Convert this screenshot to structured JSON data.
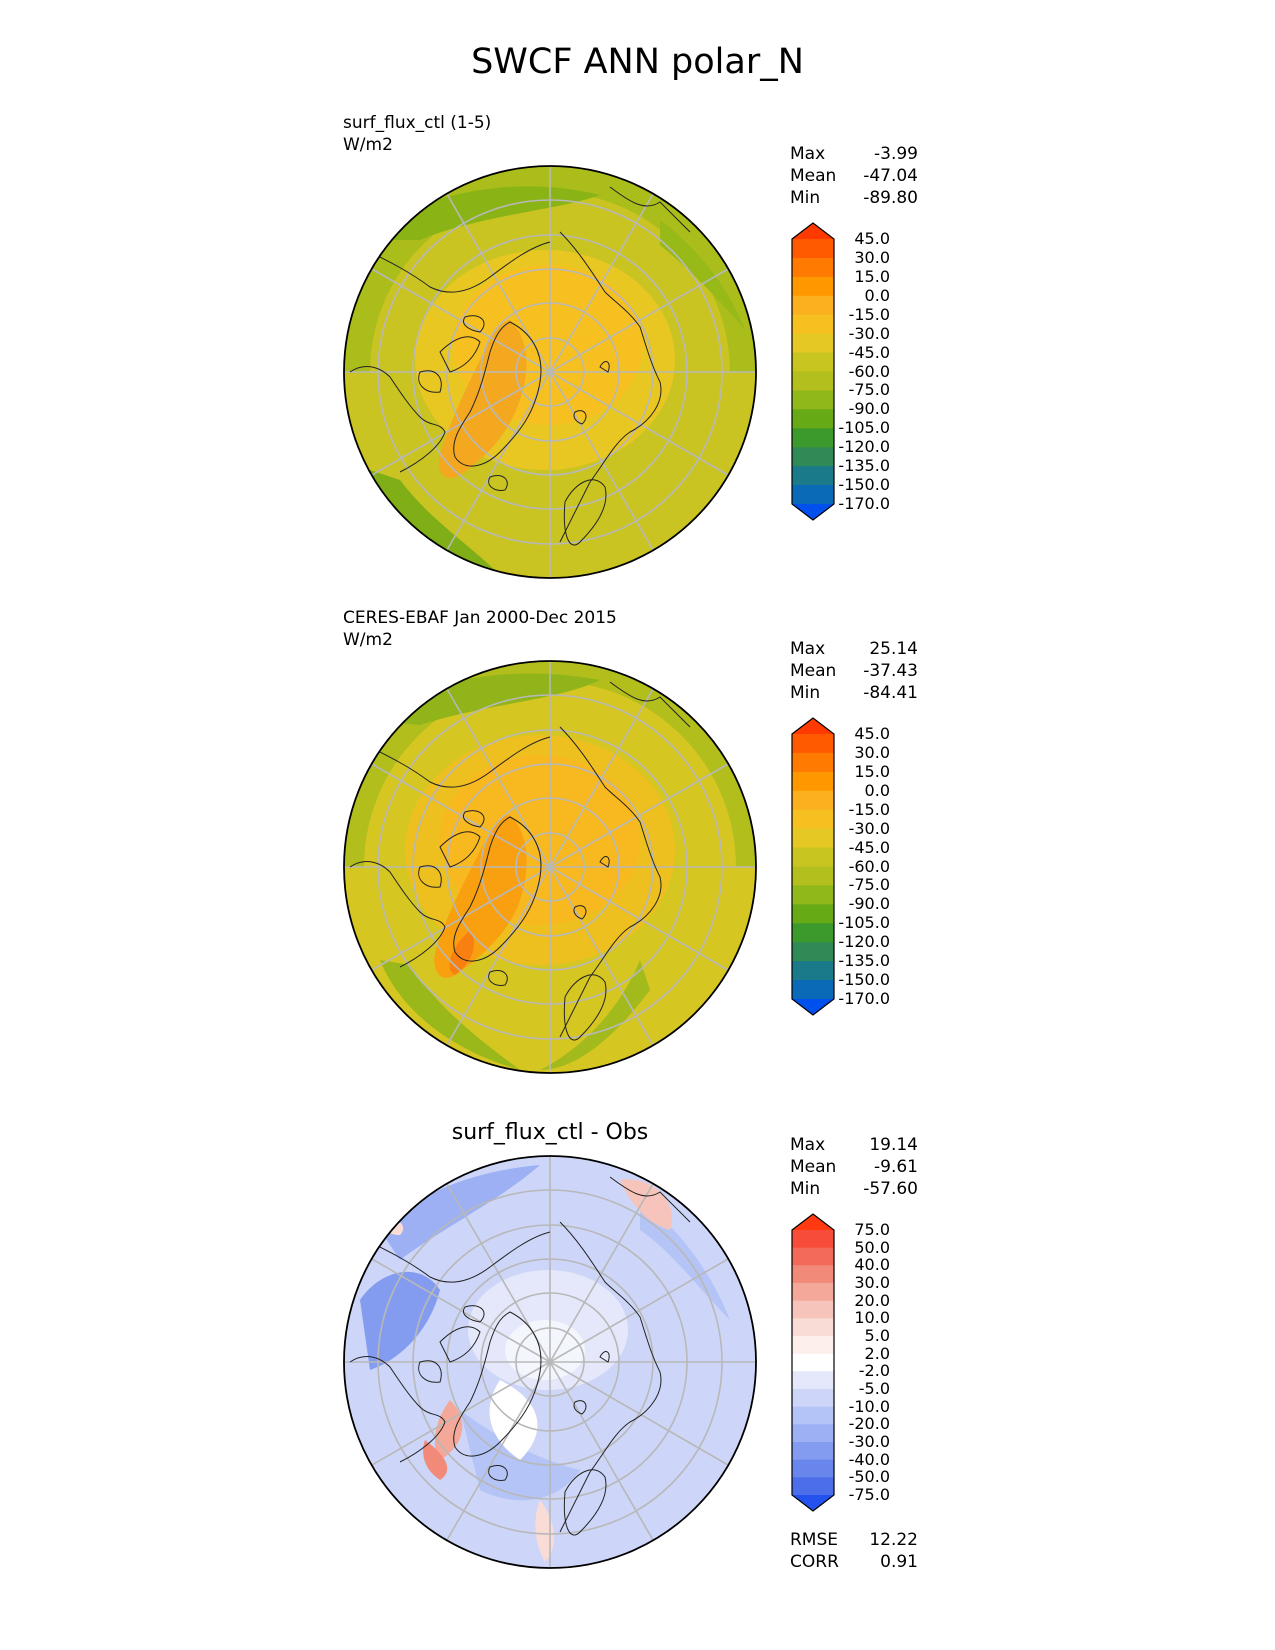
{
  "title": "SWCF ANN polar_N",
  "panels": [
    {
      "id": "model",
      "title_line1": "surf_flux_ctl (1-5)",
      "title_line2": "W/m2",
      "stats": [
        {
          "label": "Max",
          "value": "-3.99"
        },
        {
          "label": "Mean",
          "value": "-47.04"
        },
        {
          "label": "Min",
          "value": "-89.80"
        }
      ],
      "colorbar_levels": [
        "45.0",
        "30.0",
        "15.0",
        "0.0",
        "-15.0",
        "-30.0",
        "-45.0",
        "-60.0",
        "-75.0",
        "-90.0",
        "-105.0",
        "-120.0",
        "-135.0",
        "-150.0",
        "-170.0"
      ],
      "colorbar_colors": [
        "#ff3a00",
        "#ff5a00",
        "#ff7a00",
        "#ff9800",
        "#fbb020",
        "#f6c020",
        "#e6c824",
        "#c8c420",
        "#b2bf1c",
        "#90b81a",
        "#66aa16",
        "#3c9a2c",
        "#2f8a56",
        "#1a7a8a",
        "#0a6ab8",
        "#0050ee"
      ]
    },
    {
      "id": "obs",
      "title_line1": "CERES-EBAF Jan 2000-Dec 2015",
      "title_line2": "W/m2",
      "stats": [
        {
          "label": "Max",
          "value": "25.14"
        },
        {
          "label": "Mean",
          "value": "-37.43"
        },
        {
          "label": "Min",
          "value": "-84.41"
        }
      ],
      "colorbar_levels": [
        "45.0",
        "30.0",
        "15.0",
        "0.0",
        "-15.0",
        "-30.0",
        "-45.0",
        "-60.0",
        "-75.0",
        "-90.0",
        "-105.0",
        "-120.0",
        "-135.0",
        "-150.0",
        "-170.0"
      ],
      "colorbar_colors": [
        "#ff3a00",
        "#ff5a00",
        "#ff7a00",
        "#ff9800",
        "#fbb020",
        "#f6c020",
        "#e6c824",
        "#c8c420",
        "#b2bf1c",
        "#90b81a",
        "#66aa16",
        "#3c9a2c",
        "#2f8a56",
        "#1a7a8a",
        "#0a6ab8",
        "#0050ee"
      ]
    },
    {
      "id": "diff",
      "title_center": "surf_flux_ctl - Obs",
      "stats": [
        {
          "label": "Max",
          "value": "19.14"
        },
        {
          "label": "Mean",
          "value": "-9.61"
        },
        {
          "label": "Min",
          "value": "-57.60"
        }
      ],
      "metrics": [
        {
          "label": "RMSE",
          "value": "12.22"
        },
        {
          "label": "CORR",
          "value": "0.91"
        }
      ],
      "colorbar_levels": [
        "75.0",
        "50.0",
        "40.0",
        "30.0",
        "20.0",
        "10.0",
        "5.0",
        "2.0",
        "-2.0",
        "-5.0",
        "-10.0",
        "-20.0",
        "-30.0",
        "-40.0",
        "-50.0",
        "-75.0"
      ],
      "colorbar_colors": [
        "#ff3a10",
        "#f84c3a",
        "#f36a5a",
        "#f28a7a",
        "#f4a89a",
        "#f6c4ba",
        "#fadcd6",
        "#fcefec",
        "#ffffff",
        "#e4e8fa",
        "#cdd6f8",
        "#b4c4f6",
        "#9cb0f3",
        "#839cf0",
        "#6886ec",
        "#4c6eea",
        "#2452ee"
      ]
    }
  ]
}
